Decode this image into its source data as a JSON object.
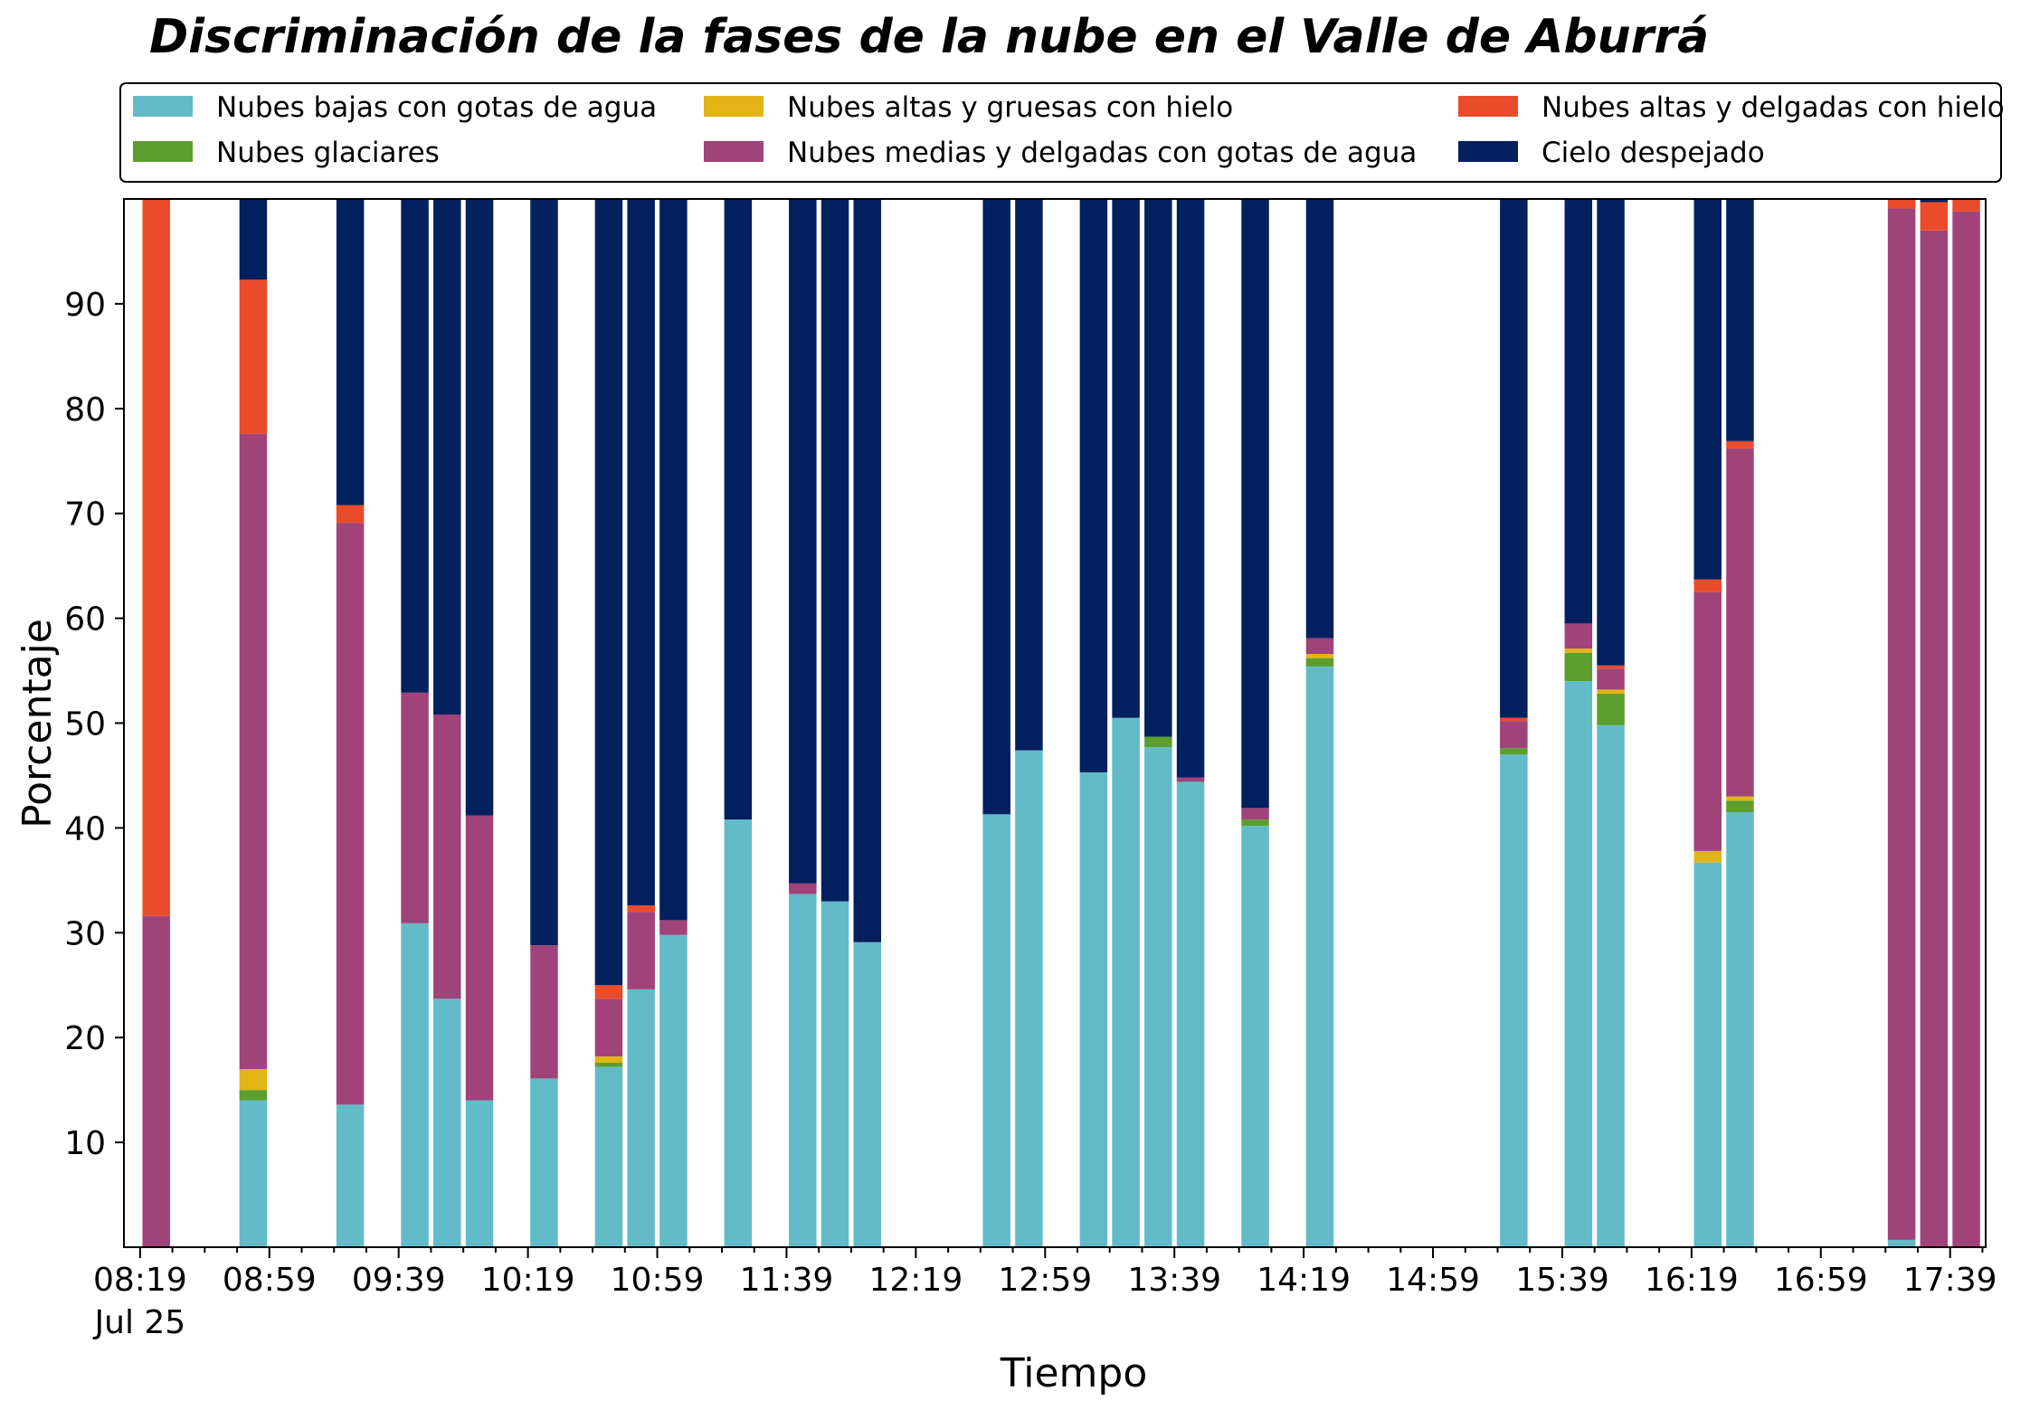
{
  "chart_data": {
    "type": "bar",
    "stacked": true,
    "title": "Discriminación de la fases de la nube en el Valle de Aburrá",
    "xlabel": "Tiempo",
    "ylabel": "Porcentaje",
    "ylim": [
      0,
      100
    ],
    "xlim": [
      "08:14",
      "17:50"
    ],
    "yticks": [
      10,
      20,
      30,
      40,
      50,
      60,
      70,
      80,
      90
    ],
    "xtick_labels": [
      "08:19",
      "08:59",
      "09:39",
      "10:19",
      "10:59",
      "11:39",
      "12:19",
      "12:59",
      "13:39",
      "14:19",
      "14:59",
      "15:39",
      "16:19",
      "16:59",
      "17:39"
    ],
    "xtick_sublabel": "Jul 25",
    "grid": false,
    "legend_position": "top",
    "series": [
      {
        "name": "Nubes bajas con gotas de agua",
        "color": "#63bbc8"
      },
      {
        "name": "Nubes glaciares",
        "color": "#5b9e2e"
      },
      {
        "name": "Nubes altas y gruesas con hielo",
        "color": "#e3b417"
      },
      {
        "name": "Nubes medias y delgadas con gotas de agua",
        "color": "#a04378"
      },
      {
        "name": "Nubes altas y delgadas con hielo",
        "color": "#ea4b2a"
      },
      {
        "name": "Cielo despejado",
        "color": "#03205e"
      }
    ],
    "bars": [
      {
        "time": "08:24",
        "values": [
          0,
          0,
          0,
          31.6,
          68.4,
          0
        ]
      },
      {
        "time": "08:54",
        "values": [
          14,
          1,
          2,
          60.6,
          14.7,
          7.7
        ]
      },
      {
        "time": "09:24",
        "values": [
          13.6,
          0,
          0,
          55.5,
          1.7,
          29.2
        ]
      },
      {
        "time": "09:44",
        "values": [
          30.9,
          0,
          0,
          22,
          0,
          47.1
        ]
      },
      {
        "time": "09:54",
        "values": [
          23.7,
          0,
          0,
          27.1,
          0,
          49.2
        ]
      },
      {
        "time": "10:04",
        "values": [
          14,
          0,
          0,
          27.2,
          0,
          58.8
        ]
      },
      {
        "time": "10:24",
        "values": [
          16.1,
          0,
          0,
          12.7,
          0,
          71.2
        ]
      },
      {
        "time": "10:44",
        "values": [
          17.2,
          0.4,
          0.6,
          5.5,
          1.3,
          75
        ]
      },
      {
        "time": "10:54",
        "values": [
          24.6,
          0,
          0,
          7.4,
          0.6,
          67.4
        ]
      },
      {
        "time": "11:04",
        "values": [
          29.8,
          0,
          0,
          1.4,
          0,
          68.8
        ]
      },
      {
        "time": "11:24",
        "values": [
          40.8,
          0,
          0,
          0,
          0,
          59.2
        ]
      },
      {
        "time": "11:44",
        "values": [
          33.7,
          0,
          0,
          1,
          0,
          65.3
        ]
      },
      {
        "time": "11:54",
        "values": [
          33,
          0,
          0,
          0,
          0,
          67
        ]
      },
      {
        "time": "12:04",
        "values": [
          29.1,
          0,
          0,
          0,
          0,
          70.9
        ]
      },
      {
        "time": "12:44",
        "values": [
          41.3,
          0,
          0,
          0,
          0,
          58.7
        ]
      },
      {
        "time": "12:54",
        "values": [
          47.4,
          0,
          0,
          0,
          0,
          52.6
        ]
      },
      {
        "time": "13:14",
        "values": [
          45.3,
          0,
          0,
          0,
          0,
          54.7
        ]
      },
      {
        "time": "13:24",
        "values": [
          50.5,
          0,
          0,
          0,
          0,
          49.5
        ]
      },
      {
        "time": "13:34",
        "values": [
          47.7,
          1,
          0,
          0,
          0,
          51.3
        ]
      },
      {
        "time": "13:44",
        "values": [
          44.4,
          0,
          0,
          0.4,
          0,
          55.2
        ]
      },
      {
        "time": "14:04",
        "values": [
          40.2,
          0.6,
          0,
          1.1,
          0,
          58.1
        ]
      },
      {
        "time": "14:24",
        "values": [
          55.4,
          0.8,
          0.4,
          1.5,
          0,
          41.9
        ]
      },
      {
        "time": "15:24",
        "values": [
          47,
          0.6,
          0,
          2.6,
          0.3,
          49.5
        ]
      },
      {
        "time": "15:44",
        "values": [
          54,
          2.7,
          0.4,
          2.4,
          0,
          40.5
        ]
      },
      {
        "time": "15:54",
        "values": [
          49.8,
          3,
          0.4,
          2,
          0.3,
          44.5
        ]
      },
      {
        "time": "16:24",
        "values": [
          36.7,
          0,
          1.1,
          24.7,
          1.2,
          36.3
        ]
      },
      {
        "time": "16:34",
        "values": [
          41.5,
          1.1,
          0.4,
          33.2,
          0.7,
          23.1
        ]
      },
      {
        "time": "17:24",
        "values": [
          0.7,
          0,
          0,
          98.4,
          0.9,
          0
        ]
      },
      {
        "time": "17:34",
        "values": [
          0,
          0,
          0,
          97,
          2.7,
          0.3
        ]
      },
      {
        "time": "17:44",
        "values": [
          0,
          0,
          0,
          98.8,
          1.2,
          0
        ]
      }
    ]
  }
}
